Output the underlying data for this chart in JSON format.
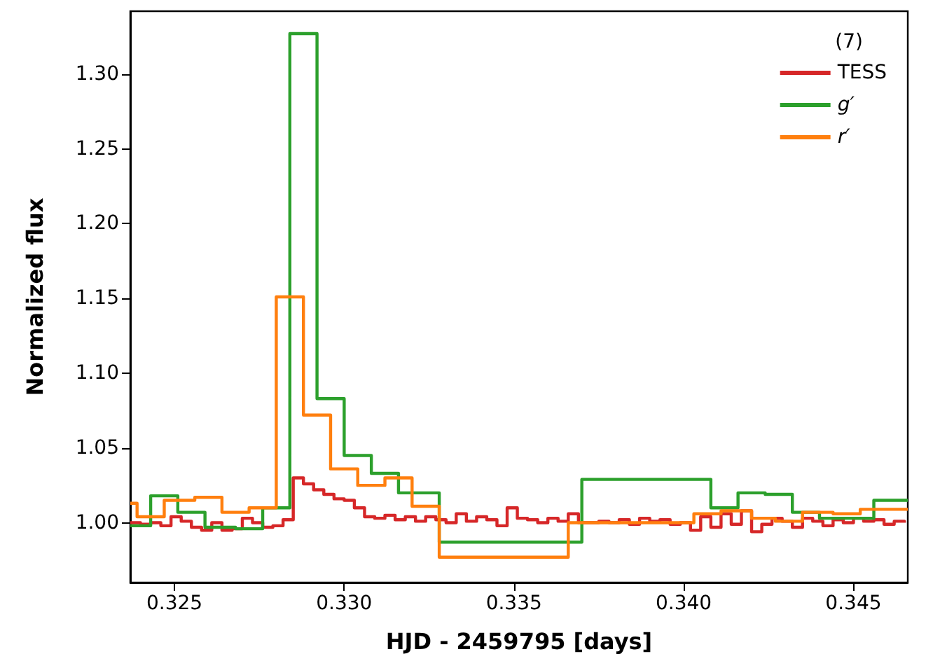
{
  "chart_data": {
    "type": "step",
    "xlabel": "HJD - 2459795 [days]",
    "ylabel": "Normalized flux",
    "legend_title": "(7)",
    "legend": "top right",
    "grid": false,
    "marker": "none",
    "line_style": "solid",
    "xlim": [
      0.3237,
      0.3466
    ],
    "xticks": [
      {
        "value": 0.325,
        "label": "0.325"
      },
      {
        "value": 0.33,
        "label": "0.330"
      },
      {
        "value": 0.335,
        "label": "0.335"
      },
      {
        "value": 0.34,
        "label": "0.340"
      },
      {
        "value": 0.345,
        "label": "0.345"
      }
    ],
    "ylim": [
      0.96,
      1.342
    ],
    "yticks": [
      {
        "value": 1.0,
        "label": "1.00"
      },
      {
        "value": 1.05,
        "label": "1.05"
      },
      {
        "value": 1.1,
        "label": "1.10"
      },
      {
        "value": 1.15,
        "label": "1.15"
      },
      {
        "value": 1.2,
        "label": "1.20"
      },
      {
        "value": 1.25,
        "label": "1.25"
      },
      {
        "value": 1.3,
        "label": "1.30"
      }
    ],
    "series": [
      {
        "name": "TESS",
        "color": "#d62728",
        "x": [
          0.3237,
          0.324,
          0.3243,
          0.3246,
          0.3249,
          0.3252,
          0.3255,
          0.3258,
          0.3261,
          0.3264,
          0.3267,
          0.327,
          0.3273,
          0.3276,
          0.3279,
          0.3282,
          0.3285,
          0.3288,
          0.3291,
          0.3294,
          0.3297,
          0.33,
          0.3303,
          0.3306,
          0.3309,
          0.3312,
          0.3315,
          0.3318,
          0.3321,
          0.3324,
          0.3327,
          0.333,
          0.3333,
          0.3336,
          0.3339,
          0.3342,
          0.3345,
          0.3348,
          0.3351,
          0.3354,
          0.3357,
          0.336,
          0.3363,
          0.3366,
          0.3369,
          0.3372,
          0.3375,
          0.3378,
          0.3381,
          0.3384,
          0.3387,
          0.339,
          0.3393,
          0.3396,
          0.3399,
          0.3402,
          0.3405,
          0.3408,
          0.3411,
          0.3414,
          0.3417,
          0.342,
          0.3423,
          0.3426,
          0.3429,
          0.3432,
          0.3435,
          0.3438,
          0.3441,
          0.3444,
          0.3447,
          0.345,
          0.3453,
          0.3456,
          0.3459,
          0.3462,
          0.3465
        ],
        "values": [
          1.0,
          0.999,
          1.0,
          0.998,
          1.004,
          1.001,
          0.997,
          0.995,
          1.0,
          0.995,
          0.996,
          1.003,
          1.0,
          0.997,
          0.998,
          1.002,
          1.03,
          1.026,
          1.022,
          1.019,
          1.016,
          1.015,
          1.01,
          1.004,
          1.003,
          1.005,
          1.002,
          1.004,
          1.001,
          1.004,
          1.002,
          1.0,
          1.006,
          1.001,
          1.004,
          1.002,
          0.998,
          1.01,
          1.003,
          1.002,
          1.0,
          1.003,
          1.001,
          1.006,
          1.0,
          1.0,
          1.001,
          1.0,
          1.002,
          0.999,
          1.003,
          1.001,
          1.002,
          0.999,
          1.0,
          0.995,
          1.004,
          0.997,
          1.006,
          0.999,
          1.008,
          0.994,
          0.999,
          1.003,
          1.001,
          0.997,
          1.003,
          1.001,
          0.998,
          1.002,
          1.0,
          1.003,
          1.001,
          1.002,
          0.999,
          1.001,
          1.0
        ]
      },
      {
        "name": "g′",
        "color": "#2ca02c",
        "x": [
          0.3237,
          0.3243,
          0.3251,
          0.3259,
          0.3268,
          0.3276,
          0.3284,
          0.3292,
          0.33,
          0.3308,
          0.3316,
          0.3328,
          0.337,
          0.3408,
          0.3416,
          0.3424,
          0.3432,
          0.344,
          0.3456,
          0.3466
        ],
        "values": [
          0.998,
          1.018,
          1.007,
          0.997,
          0.996,
          1.01,
          1.327,
          1.083,
          1.045,
          1.033,
          1.02,
          0.987,
          1.029,
          1.01,
          1.02,
          1.019,
          1.007,
          1.003,
          1.015,
          1.015
        ]
      },
      {
        "name": "r′",
        "color": "#ff7f0e",
        "x": [
          0.3237,
          0.3239,
          0.3247,
          0.3256,
          0.3264,
          0.3272,
          0.328,
          0.3288,
          0.3296,
          0.3304,
          0.3312,
          0.332,
          0.3328,
          0.3366,
          0.3403,
          0.3411,
          0.342,
          0.3427,
          0.3435,
          0.3444,
          0.3452,
          0.3466
        ],
        "values": [
          1.013,
          1.004,
          1.015,
          1.017,
          1.007,
          1.01,
          1.151,
          1.072,
          1.036,
          1.025,
          1.03,
          1.011,
          0.977,
          1.0,
          1.006,
          1.008,
          1.003,
          1.001,
          1.007,
          1.006,
          1.009,
          1.009
        ]
      }
    ]
  }
}
